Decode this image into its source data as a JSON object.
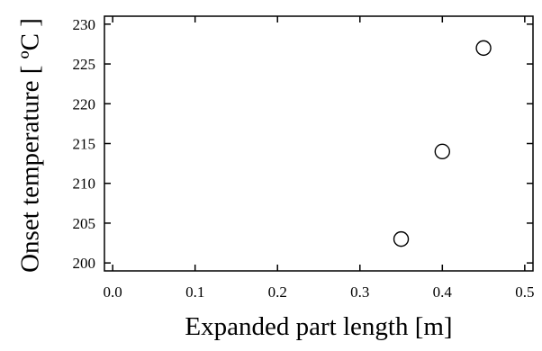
{
  "chart_data": {
    "type": "scatter",
    "title": "",
    "xlabel": "Expanded part length [m]",
    "ylabel": "Onset temperature  [ ºC ]",
    "xlim": [
      -0.01,
      0.51
    ],
    "ylim": [
      199,
      231
    ],
    "x_ticks": [
      0.0,
      0.1,
      0.2,
      0.3,
      0.4,
      0.5
    ],
    "x_tick_labels": [
      "0.0",
      "0.1",
      "0.2",
      "0.3",
      "0.4",
      "0.5"
    ],
    "y_ticks": [
      200,
      205,
      210,
      215,
      220,
      225,
      230
    ],
    "y_tick_labels": [
      "200",
      "205",
      "210",
      "215",
      "220",
      "225",
      "230"
    ],
    "grid": false,
    "legend": false,
    "marker": "open-circle",
    "colors": {
      "axes": "#000000",
      "marker_edge": "#000000",
      "marker_fill": "#ffffff",
      "background": "#ffffff"
    },
    "series": [
      {
        "points": [
          {
            "x": 0.35,
            "y": 203
          },
          {
            "x": 0.4,
            "y": 214
          },
          {
            "x": 0.45,
            "y": 227
          }
        ]
      }
    ]
  }
}
